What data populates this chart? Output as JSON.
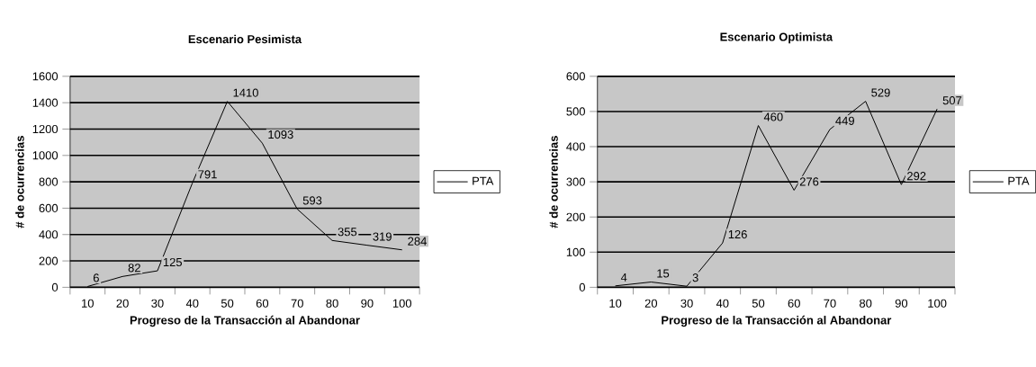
{
  "chart_data": [
    {
      "type": "line",
      "title": "Escenario Pesimista",
      "xlabel": "Progreso de la Transacción al Abandonar",
      "ylabel": "# de ocurrencias",
      "categories": [
        "10",
        "20",
        "30",
        "40",
        "50",
        "60",
        "70",
        "80",
        "90",
        "100"
      ],
      "series": [
        {
          "name": "PTA",
          "color": "#000000",
          "values": [
            6,
            82,
            125,
            791,
            1410,
            1093,
            593,
            355,
            319,
            284
          ]
        }
      ],
      "ylim": [
        0,
        1600
      ],
      "yticks": [
        0,
        200,
        400,
        600,
        800,
        1000,
        1200,
        1400,
        1600
      ],
      "grid": "y",
      "legend": "right",
      "data_labels": true
    },
    {
      "type": "line",
      "title": "Escenario Optimista",
      "xlabel": "Progreso de la Transacción al Abandonar",
      "ylabel": "# de ocurrencias",
      "categories": [
        "10",
        "20",
        "30",
        "40",
        "50",
        "60",
        "70",
        "80",
        "90",
        "100"
      ],
      "series": [
        {
          "name": "PTA",
          "color": "#000000",
          "values": [
            4,
            15,
            3,
            126,
            460,
            276,
            449,
            529,
            292,
            507
          ]
        }
      ],
      "ylim": [
        0,
        600
      ],
      "yticks": [
        0,
        100,
        200,
        300,
        400,
        500,
        600
      ],
      "grid": "y",
      "legend": "right",
      "data_labels": true
    }
  ]
}
